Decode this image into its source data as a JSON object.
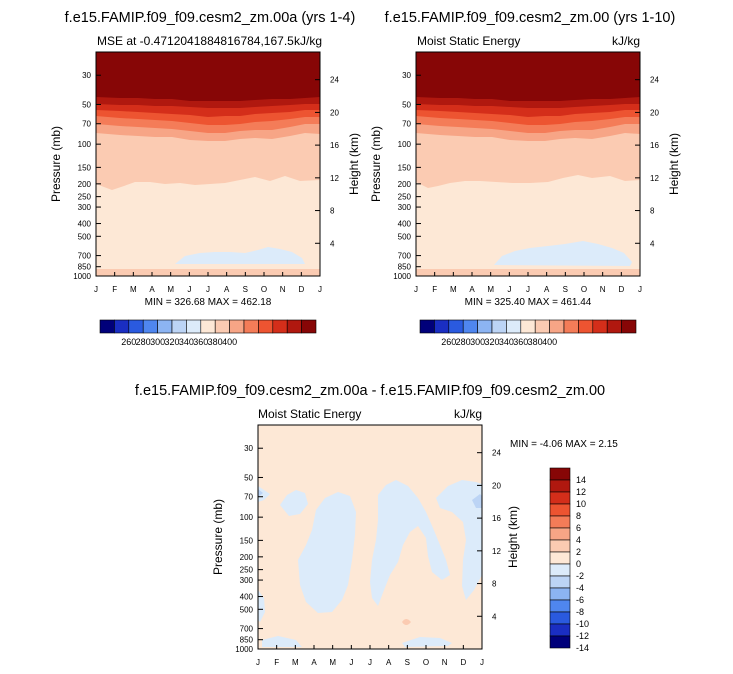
{
  "figure": {
    "panels": [
      {
        "title": "f.e15.FAMIP.f09_f09.cesm2_zm.00a (yrs 1-4)",
        "left_label": "MSE at -0.4712041884816784,167.5",
        "right_label": "kJ/kg",
        "ylabel_left": "Pressure (mb)",
        "ylabel_right": "Height (km)",
        "stats": "MIN = 326.68 MAX = 462.18"
      },
      {
        "title": "f.e15.FAMIP.f09_f09.cesm2_zm.00 (yrs 1-10)",
        "left_label": "Moist Static Energy",
        "right_label": "kJ/kg",
        "ylabel_left": "Pressure (mb)",
        "ylabel_right": "Height (km)",
        "stats": "MIN = 325.40 MAX = 461.44"
      },
      {
        "title": "f.e15.FAMIP.f09_f09.cesm2_zm.00a - f.e15.FAMIP.f09_f09.cesm2_zm.00",
        "left_label": "Moist Static Energy",
        "right_label": "kJ/kg",
        "ylabel_left": "Pressure (mb)",
        "ylabel_right": "Height (km)",
        "stats": "MIN =  -4.06 MAX =   2.15"
      }
    ]
  },
  "chart_data": [
    {
      "type": "heatmap",
      "title": "f.e15.FAMIP.f09_f09.cesm2_zm.00a (yrs 1-4)",
      "x_tick_labels": [
        "J",
        "F",
        "M",
        "A",
        "M",
        "J",
        "J",
        "A",
        "S",
        "O",
        "N",
        "D",
        "J"
      ],
      "y_ticks_pressure": [
        30,
        50,
        70,
        100,
        150,
        200,
        250,
        300,
        400,
        500,
        700,
        850,
        1000
      ],
      "y_ticks_height_km": [
        24,
        20,
        16,
        12,
        8,
        4
      ],
      "ylabel": "Pressure (mb)",
      "ylabel_right": "Height (km)",
      "min": 326.68,
      "max": 462.18,
      "colorbar_labels": [
        "260",
        "280",
        "300",
        "320",
        "340",
        "360",
        "380",
        "400"
      ],
      "colors": [
        "#00007a",
        "#1a2ec2",
        "#2a5adf",
        "#4f86ef",
        "#8cb4f2",
        "#bcd4f5",
        "#dcebfa",
        "#fde8d6",
        "#fbcbb2",
        "#f7a586",
        "#f47c58",
        "#ed5431",
        "#d42e1a",
        "#b0180f",
        "#870606"
      ],
      "approx_bands": [
        {
          "pressure_range": [
            1000,
            900
          ],
          "value_range": [
            340,
            345
          ]
        },
        {
          "pressure_range": [
            900,
            620
          ],
          "value_range": [
            330,
            340
          ]
        },
        {
          "pressure_range": [
            620,
            220
          ],
          "value_range": [
            330,
            340
          ]
        },
        {
          "pressure_range": [
            220,
            100
          ],
          "value_range": [
            340,
            350
          ]
        },
        {
          "pressure_range": [
            100,
            50
          ],
          "value_range": [
            350,
            400
          ]
        },
        {
          "pressure_range": [
            50,
            20
          ],
          "value_range": [
            400,
            462
          ]
        }
      ]
    },
    {
      "type": "heatmap",
      "title": "f.e15.FAMIP.f09_f09.cesm2_zm.00 (yrs 1-10)",
      "x_tick_labels": [
        "J",
        "F",
        "M",
        "A",
        "M",
        "J",
        "J",
        "A",
        "S",
        "O",
        "N",
        "D",
        "J"
      ],
      "y_ticks_pressure": [
        30,
        50,
        70,
        100,
        150,
        200,
        250,
        300,
        400,
        500,
        700,
        850,
        1000
      ],
      "y_ticks_height_km": [
        24,
        20,
        16,
        12,
        8,
        4
      ],
      "ylabel": "Pressure (mb)",
      "ylabel_right": "Height (km)",
      "min": 325.4,
      "max": 461.44,
      "colorbar_labels": [
        "260",
        "280",
        "300",
        "320",
        "340",
        "360",
        "380",
        "400"
      ],
      "colors": [
        "#00007a",
        "#1a2ec2",
        "#2a5adf",
        "#4f86ef",
        "#8cb4f2",
        "#bcd4f5",
        "#dcebfa",
        "#fde8d6",
        "#fbcbb2",
        "#f7a586",
        "#f47c58",
        "#ed5431",
        "#d42e1a",
        "#b0180f",
        "#870606"
      ],
      "approx_bands": [
        {
          "pressure_range": [
            1000,
            900
          ],
          "value_range": [
            340,
            345
          ]
        },
        {
          "pressure_range": [
            900,
            620
          ],
          "value_range": [
            330,
            340
          ]
        },
        {
          "pressure_range": [
            620,
            220
          ],
          "value_range": [
            330,
            340
          ]
        },
        {
          "pressure_range": [
            220,
            100
          ],
          "value_range": [
            340,
            350
          ]
        },
        {
          "pressure_range": [
            100,
            50
          ],
          "value_range": [
            350,
            400
          ]
        },
        {
          "pressure_range": [
            50,
            20
          ],
          "value_range": [
            400,
            461
          ]
        }
      ]
    },
    {
      "type": "heatmap",
      "title": "f.e15.FAMIP.f09_f09.cesm2_zm.00a - f.e15.FAMIP.f09_f09.cesm2_zm.00",
      "x_tick_labels": [
        "J",
        "F",
        "M",
        "A",
        "M",
        "J",
        "J",
        "A",
        "S",
        "O",
        "N",
        "D",
        "J"
      ],
      "y_ticks_pressure": [
        30,
        50,
        70,
        100,
        150,
        200,
        250,
        300,
        400,
        500,
        700,
        850,
        1000
      ],
      "y_ticks_height_km": [
        24,
        20,
        16,
        12,
        8,
        4
      ],
      "ylabel": "Pressure (mb)",
      "ylabel_right": "Height (km)",
      "min": -4.06,
      "max": 2.15,
      "colorbar_labels": [
        "14",
        "12",
        "10",
        "8",
        "6",
        "4",
        "2",
        "0",
        "-2",
        "-4",
        "-6",
        "-8",
        "-10",
        "-12",
        "-14"
      ],
      "colors": [
        "#870606",
        "#b0180f",
        "#d42e1a",
        "#ed5431",
        "#f47c58",
        "#f7a586",
        "#fbcbb2",
        "#fde8d6",
        "#dcebfa",
        "#bcd4f5",
        "#8cb4f2",
        "#4f86ef",
        "#2a5adf",
        "#1a2ec2",
        "#00007a"
      ],
      "approx_values": {
        "background": [
          0,
          2
        ],
        "patches": [
          -2,
          0
        ]
      }
    }
  ]
}
